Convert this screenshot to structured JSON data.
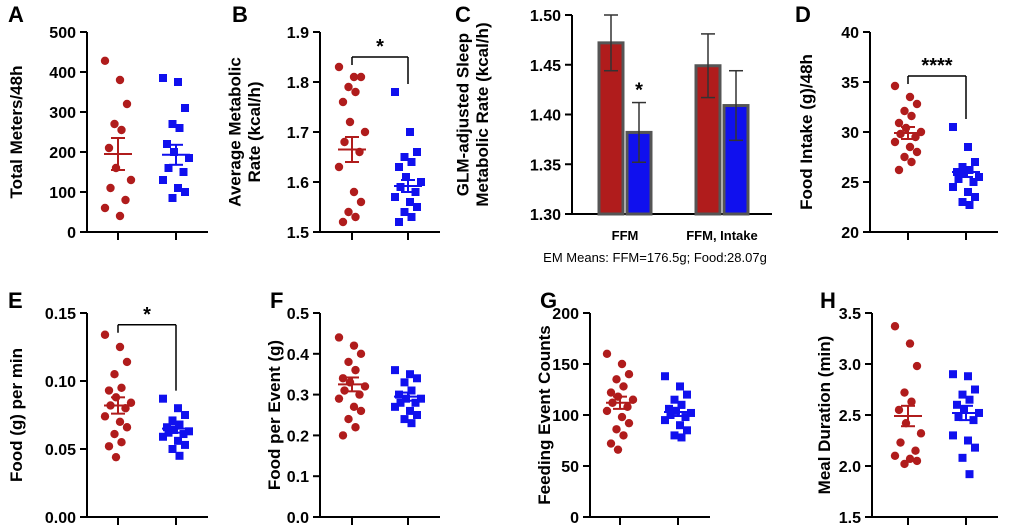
{
  "colors": {
    "group1": "#b01c1c",
    "group2": "#1010ee",
    "bar_edge": "#555555",
    "axis": "#000000"
  },
  "chart_data": [
    {
      "panel": "A",
      "type": "scatter",
      "ylabel": "Total Meters/48h",
      "ylim": [
        0,
        500
      ],
      "yticks": [
        0,
        100,
        200,
        300,
        400,
        500
      ],
      "tick_labels": [
        "0",
        "100",
        "200",
        "300",
        "400",
        "500"
      ],
      "series": [
        {
          "name": "group1",
          "marker": "circle",
          "values": [
            428,
            380,
            320,
            270,
            255,
            210,
            160,
            130,
            110,
            80,
            60,
            40
          ],
          "mean": 195,
          "sem": 40
        },
        {
          "name": "group2",
          "marker": "square",
          "values": [
            385,
            375,
            310,
            270,
            260,
            220,
            200,
            185,
            160,
            150,
            130,
            110,
            100,
            85
          ],
          "mean": 193,
          "sem": 25
        }
      ]
    },
    {
      "panel": "B",
      "type": "scatter",
      "ylabel": "Average Metabolic Rate (kcal/h)",
      "ylim": [
        1.5,
        1.9
      ],
      "yticks": [
        1.5,
        1.6,
        1.7,
        1.8,
        1.9
      ],
      "tick_labels": [
        "1.5",
        "1.6",
        "1.7",
        "1.8",
        "1.9"
      ],
      "significance": "*",
      "series": [
        {
          "name": "group1",
          "marker": "circle",
          "values": [
            1.83,
            1.81,
            1.81,
            1.79,
            1.78,
            1.76,
            1.72,
            1.7,
            1.68,
            1.66,
            1.63,
            1.58,
            1.56,
            1.54,
            1.53,
            1.52
          ],
          "mean": 1.665,
          "sem": 0.025
        },
        {
          "name": "group2",
          "marker": "square",
          "values": [
            1.78,
            1.7,
            1.66,
            1.65,
            1.64,
            1.63,
            1.61,
            1.6,
            1.59,
            1.58,
            1.57,
            1.56,
            1.55,
            1.54,
            1.53,
            1.52
          ],
          "mean": 1.592,
          "sem": 0.012
        }
      ]
    },
    {
      "panel": "C",
      "type": "bar",
      "ylabel": "GLM-adjusted Sleep Metabolic Rate (kcal/h)",
      "ylim": [
        1.3,
        1.5
      ],
      "yticks": [
        1.3,
        1.35,
        1.4,
        1.45,
        1.5
      ],
      "tick_labels": [
        "1.30",
        "1.35",
        "1.40",
        "1.45",
        "1.50"
      ],
      "categories": [
        "FFM",
        "FFM, Intake"
      ],
      "series": [
        {
          "name": "group1",
          "values": [
            1.472,
            1.449
          ],
          "errors": [
            0.028,
            0.032
          ]
        },
        {
          "name": "group2",
          "values": [
            1.382,
            1.409
          ],
          "errors": [
            0.03,
            0.035
          ]
        }
      ],
      "annotations": [
        {
          "category": "FFM",
          "series": "group2",
          "text": "*"
        }
      ],
      "footnote": "EM Means: FFM=176.5g; Food:28.07g"
    },
    {
      "panel": "D",
      "type": "scatter",
      "ylabel": "Food Intake (g)/48h",
      "ylim": [
        20,
        40
      ],
      "yticks": [
        20,
        25,
        30,
        35,
        40
      ],
      "tick_labels": [
        "20",
        "25",
        "30",
        "35",
        "40"
      ],
      "significance": "****",
      "series": [
        {
          "name": "group1",
          "marker": "circle",
          "values": [
            34.6,
            33.5,
            32.8,
            32.1,
            31.6,
            30.9,
            30.4,
            30.0,
            29.8,
            29.5,
            29.0,
            28.5,
            28.0,
            27.5,
            27.0,
            26.2
          ],
          "mean": 29.9,
          "sem": 0.6
        },
        {
          "name": "group2",
          "marker": "square",
          "values": [
            30.5,
            28.5,
            27.0,
            26.5,
            26.2,
            26.0,
            25.8,
            25.5,
            25.3,
            25.0,
            24.5,
            24.0,
            23.5,
            23.0,
            22.7
          ],
          "mean": 26.0,
          "sem": 0.5
        }
      ]
    },
    {
      "panel": "E",
      "type": "scatter",
      "ylabel": "Food (g) per min",
      "ylim": [
        0,
        0.15
      ],
      "yticks": [
        0,
        0.05,
        0.1,
        0.15
      ],
      "tick_labels": [
        "0.00",
        "0.05",
        "0.10",
        "0.15"
      ],
      "significance": "*",
      "series": [
        {
          "name": "group1",
          "marker": "circle",
          "values": [
            0.134,
            0.125,
            0.114,
            0.105,
            0.095,
            0.093,
            0.088,
            0.084,
            0.082,
            0.08,
            0.074,
            0.07,
            0.066,
            0.061,
            0.055,
            0.052,
            0.044
          ],
          "mean": 0.082,
          "sem": 0.006
        },
        {
          "name": "group2",
          "marker": "square",
          "values": [
            0.087,
            0.08,
            0.075,
            0.071,
            0.068,
            0.066,
            0.064,
            0.063,
            0.062,
            0.061,
            0.059,
            0.056,
            0.053,
            0.05,
            0.045
          ],
          "mean": 0.065,
          "sem": 0.003
        }
      ]
    },
    {
      "panel": "F",
      "type": "scatter",
      "ylabel": "Food per Event (g)",
      "ylim": [
        0,
        0.5
      ],
      "yticks": [
        0,
        0.1,
        0.2,
        0.3,
        0.4,
        0.5
      ],
      "tick_labels": [
        "0.0",
        "0.1",
        "0.2",
        "0.3",
        "0.4",
        "0.5"
      ],
      "series": [
        {
          "name": "group1",
          "marker": "circle",
          "values": [
            0.44,
            0.42,
            0.4,
            0.38,
            0.36,
            0.34,
            0.33,
            0.32,
            0.31,
            0.3,
            0.29,
            0.27,
            0.26,
            0.24,
            0.22,
            0.2
          ],
          "mean": 0.325,
          "sem": 0.017
        },
        {
          "name": "group2",
          "marker": "square",
          "values": [
            0.36,
            0.35,
            0.34,
            0.33,
            0.31,
            0.3,
            0.29,
            0.29,
            0.28,
            0.28,
            0.27,
            0.26,
            0.25,
            0.24,
            0.23
          ],
          "mean": 0.295,
          "sem": 0.01
        }
      ]
    },
    {
      "panel": "G",
      "type": "scatter",
      "ylabel": "Feeding Event Counts",
      "ylim": [
        0,
        200
      ],
      "yticks": [
        0,
        50,
        100,
        150,
        200
      ],
      "tick_labels": [
        "0",
        "50",
        "100",
        "150",
        "200"
      ],
      "series": [
        {
          "name": "group1",
          "marker": "circle",
          "values": [
            160,
            150,
            140,
            135,
            128,
            122,
            118,
            115,
            112,
            108,
            104,
            98,
            92,
            86,
            80,
            72,
            66
          ],
          "mean": 112,
          "sem": 6
        },
        {
          "name": "group2",
          "marker": "square",
          "values": [
            138,
            128,
            120,
            115,
            110,
            106,
            104,
            102,
            100,
            98,
            95,
            90,
            85,
            80,
            78
          ],
          "mean": 103,
          "sem": 4
        }
      ]
    },
    {
      "panel": "H",
      "type": "scatter",
      "ylabel": "Meal Duration (min)",
      "ylim": [
        1.5,
        3.5
      ],
      "yticks": [
        1.5,
        2.0,
        2.5,
        3.0,
        3.5
      ],
      "tick_labels": [
        "1.5",
        "2.0",
        "2.5",
        "3.0",
        "3.5"
      ],
      "series": [
        {
          "name": "group1",
          "marker": "circle",
          "values": [
            3.37,
            3.2,
            2.98,
            2.72,
            2.63,
            2.55,
            2.42,
            2.32,
            2.23,
            2.15,
            2.1,
            2.07,
            2.05,
            2.02
          ],
          "mean": 2.49,
          "sem": 0.1
        },
        {
          "name": "group2",
          "marker": "square",
          "values": [
            2.9,
            2.88,
            2.75,
            2.7,
            2.65,
            2.6,
            2.55,
            2.52,
            2.48,
            2.45,
            2.3,
            2.25,
            2.18,
            2.08,
            1.92
          ],
          "mean": 2.52,
          "sem": 0.07
        }
      ]
    }
  ]
}
